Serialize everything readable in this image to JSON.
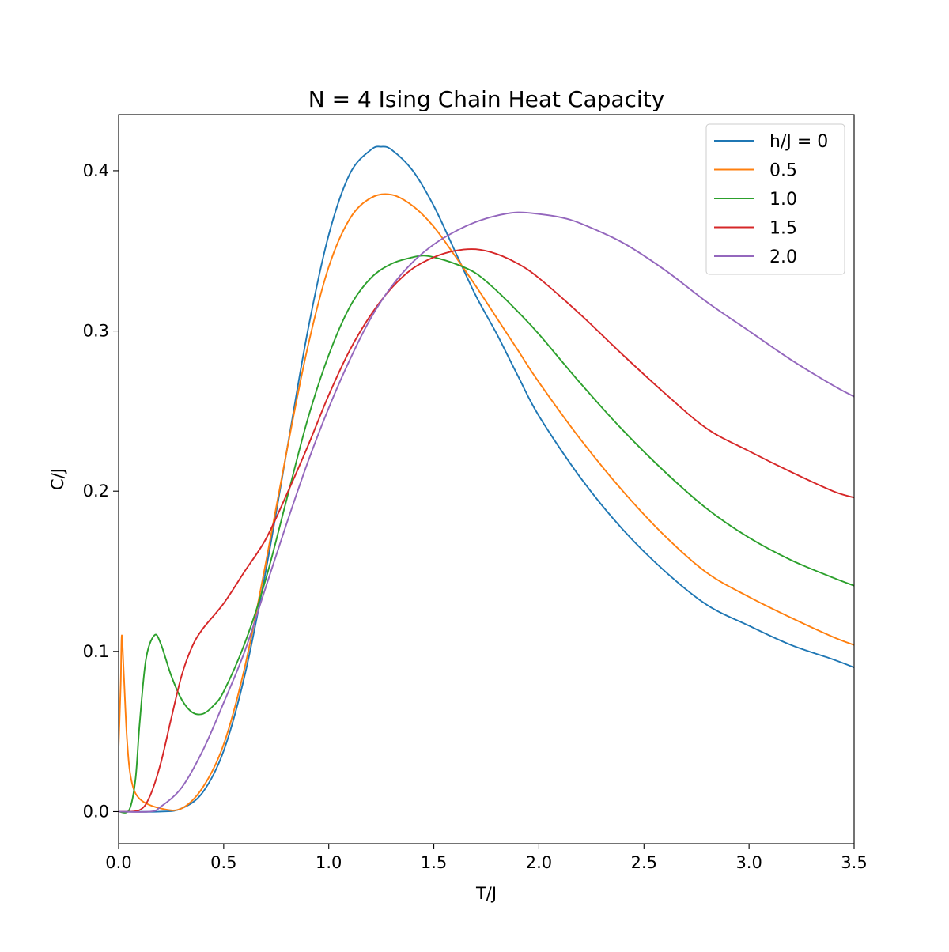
{
  "chart_data": {
    "type": "line",
    "title": "N = 4 Ising Chain Heat Capacity",
    "xlabel": "T/J",
    "ylabel": "C/J",
    "xlim": [
      0.0,
      3.5
    ],
    "ylim": [
      -0.02,
      0.435
    ],
    "xticks": [
      0.0,
      0.5,
      1.0,
      1.5,
      2.0,
      2.5,
      3.0,
      3.5
    ],
    "xtick_labels": [
      "0.0",
      "0.5",
      "1.0",
      "1.5",
      "2.0",
      "2.5",
      "3.0",
      "3.5"
    ],
    "yticks": [
      0.0,
      0.1,
      0.2,
      0.3,
      0.4
    ],
    "ytick_labels": [
      "0.0",
      "0.1",
      "0.2",
      "0.3",
      "0.4"
    ],
    "grid": false,
    "legend_position": "top-right",
    "series": [
      {
        "name": "h/J = 0",
        "color": "#1f77b4",
        "points": [
          [
            0.0,
            0.0
          ],
          [
            0.2,
            0.0
          ],
          [
            0.3,
            0.002
          ],
          [
            0.4,
            0.012
          ],
          [
            0.5,
            0.038
          ],
          [
            0.6,
            0.085
          ],
          [
            0.7,
            0.15
          ],
          [
            0.8,
            0.225
          ],
          [
            0.9,
            0.3
          ],
          [
            1.0,
            0.36
          ],
          [
            1.1,
            0.398
          ],
          [
            1.2,
            0.413
          ],
          [
            1.25,
            0.415
          ],
          [
            1.3,
            0.413
          ],
          [
            1.4,
            0.4
          ],
          [
            1.5,
            0.378
          ],
          [
            1.6,
            0.35
          ],
          [
            1.7,
            0.322
          ],
          [
            1.8,
            0.298
          ],
          [
            1.9,
            0.272
          ],
          [
            2.0,
            0.247
          ],
          [
            2.2,
            0.208
          ],
          [
            2.4,
            0.176
          ],
          [
            2.6,
            0.15
          ],
          [
            2.8,
            0.129
          ],
          [
            3.0,
            0.116
          ],
          [
            3.2,
            0.104
          ],
          [
            3.4,
            0.095
          ],
          [
            3.5,
            0.09
          ]
        ]
      },
      {
        "name": "0.5",
        "color": "#ff7f0e",
        "points": [
          [
            0.0,
            0.04
          ],
          [
            0.01,
            0.08
          ],
          [
            0.015,
            0.11
          ],
          [
            0.025,
            0.085
          ],
          [
            0.04,
            0.045
          ],
          [
            0.06,
            0.02
          ],
          [
            0.1,
            0.008
          ],
          [
            0.2,
            0.002
          ],
          [
            0.3,
            0.002
          ],
          [
            0.4,
            0.015
          ],
          [
            0.5,
            0.042
          ],
          [
            0.6,
            0.09
          ],
          [
            0.7,
            0.155
          ],
          [
            0.8,
            0.225
          ],
          [
            0.9,
            0.29
          ],
          [
            1.0,
            0.34
          ],
          [
            1.1,
            0.37
          ],
          [
            1.2,
            0.383
          ],
          [
            1.3,
            0.385
          ],
          [
            1.4,
            0.378
          ],
          [
            1.5,
            0.365
          ],
          [
            1.6,
            0.347
          ],
          [
            1.7,
            0.328
          ],
          [
            1.8,
            0.308
          ],
          [
            1.9,
            0.288
          ],
          [
            2.0,
            0.268
          ],
          [
            2.2,
            0.232
          ],
          [
            2.4,
            0.2
          ],
          [
            2.6,
            0.172
          ],
          [
            2.8,
            0.149
          ],
          [
            3.0,
            0.134
          ],
          [
            3.2,
            0.121
          ],
          [
            3.4,
            0.109
          ],
          [
            3.5,
            0.104
          ]
        ]
      },
      {
        "name": "1.0",
        "color": "#2ca02c",
        "points": [
          [
            0.0,
            0.0
          ],
          [
            0.05,
            0.001
          ],
          [
            0.08,
            0.02
          ],
          [
            0.1,
            0.055
          ],
          [
            0.13,
            0.095
          ],
          [
            0.17,
            0.11
          ],
          [
            0.2,
            0.105
          ],
          [
            0.25,
            0.085
          ],
          [
            0.3,
            0.07
          ],
          [
            0.35,
            0.062
          ],
          [
            0.4,
            0.061
          ],
          [
            0.45,
            0.066
          ],
          [
            0.5,
            0.075
          ],
          [
            0.6,
            0.105
          ],
          [
            0.7,
            0.145
          ],
          [
            0.8,
            0.195
          ],
          [
            0.9,
            0.245
          ],
          [
            1.0,
            0.285
          ],
          [
            1.1,
            0.315
          ],
          [
            1.2,
            0.333
          ],
          [
            1.3,
            0.342
          ],
          [
            1.4,
            0.346
          ],
          [
            1.45,
            0.347
          ],
          [
            1.5,
            0.346
          ],
          [
            1.6,
            0.342
          ],
          [
            1.7,
            0.336
          ],
          [
            1.8,
            0.325
          ],
          [
            1.9,
            0.312
          ],
          [
            2.0,
            0.298
          ],
          [
            2.2,
            0.267
          ],
          [
            2.4,
            0.238
          ],
          [
            2.6,
            0.212
          ],
          [
            2.8,
            0.189
          ],
          [
            3.0,
            0.171
          ],
          [
            3.2,
            0.157
          ],
          [
            3.4,
            0.146
          ],
          [
            3.5,
            0.141
          ]
        ]
      },
      {
        "name": "1.5",
        "color": "#d62728",
        "points": [
          [
            0.0,
            0.0
          ],
          [
            0.1,
            0.001
          ],
          [
            0.15,
            0.01
          ],
          [
            0.2,
            0.03
          ],
          [
            0.25,
            0.058
          ],
          [
            0.3,
            0.085
          ],
          [
            0.35,
            0.103
          ],
          [
            0.4,
            0.114
          ],
          [
            0.5,
            0.13
          ],
          [
            0.6,
            0.15
          ],
          [
            0.7,
            0.17
          ],
          [
            0.8,
            0.198
          ],
          [
            0.9,
            0.228
          ],
          [
            1.0,
            0.26
          ],
          [
            1.1,
            0.288
          ],
          [
            1.2,
            0.31
          ],
          [
            1.3,
            0.327
          ],
          [
            1.4,
            0.339
          ],
          [
            1.5,
            0.346
          ],
          [
            1.6,
            0.35
          ],
          [
            1.7,
            0.351
          ],
          [
            1.8,
            0.348
          ],
          [
            1.9,
            0.342
          ],
          [
            2.0,
            0.333
          ],
          [
            2.2,
            0.31
          ],
          [
            2.4,
            0.285
          ],
          [
            2.6,
            0.261
          ],
          [
            2.8,
            0.239
          ],
          [
            3.0,
            0.225
          ],
          [
            3.2,
            0.212
          ],
          [
            3.4,
            0.2
          ],
          [
            3.5,
            0.196
          ]
        ]
      },
      {
        "name": "2.0",
        "color": "#9467bd",
        "points": [
          [
            0.0,
            0.0
          ],
          [
            0.15,
            0.0
          ],
          [
            0.2,
            0.003
          ],
          [
            0.3,
            0.015
          ],
          [
            0.4,
            0.038
          ],
          [
            0.5,
            0.068
          ],
          [
            0.6,
            0.1
          ],
          [
            0.7,
            0.14
          ],
          [
            0.8,
            0.18
          ],
          [
            0.9,
            0.218
          ],
          [
            1.0,
            0.252
          ],
          [
            1.1,
            0.282
          ],
          [
            1.2,
            0.308
          ],
          [
            1.3,
            0.328
          ],
          [
            1.4,
            0.343
          ],
          [
            1.5,
            0.354
          ],
          [
            1.6,
            0.362
          ],
          [
            1.7,
            0.368
          ],
          [
            1.8,
            0.372
          ],
          [
            1.9,
            0.374
          ],
          [
            2.0,
            0.373
          ],
          [
            2.1,
            0.371
          ],
          [
            2.2,
            0.367
          ],
          [
            2.4,
            0.355
          ],
          [
            2.6,
            0.338
          ],
          [
            2.8,
            0.318
          ],
          [
            3.0,
            0.3
          ],
          [
            3.2,
            0.282
          ],
          [
            3.4,
            0.266
          ],
          [
            3.5,
            0.259
          ]
        ]
      }
    ]
  }
}
